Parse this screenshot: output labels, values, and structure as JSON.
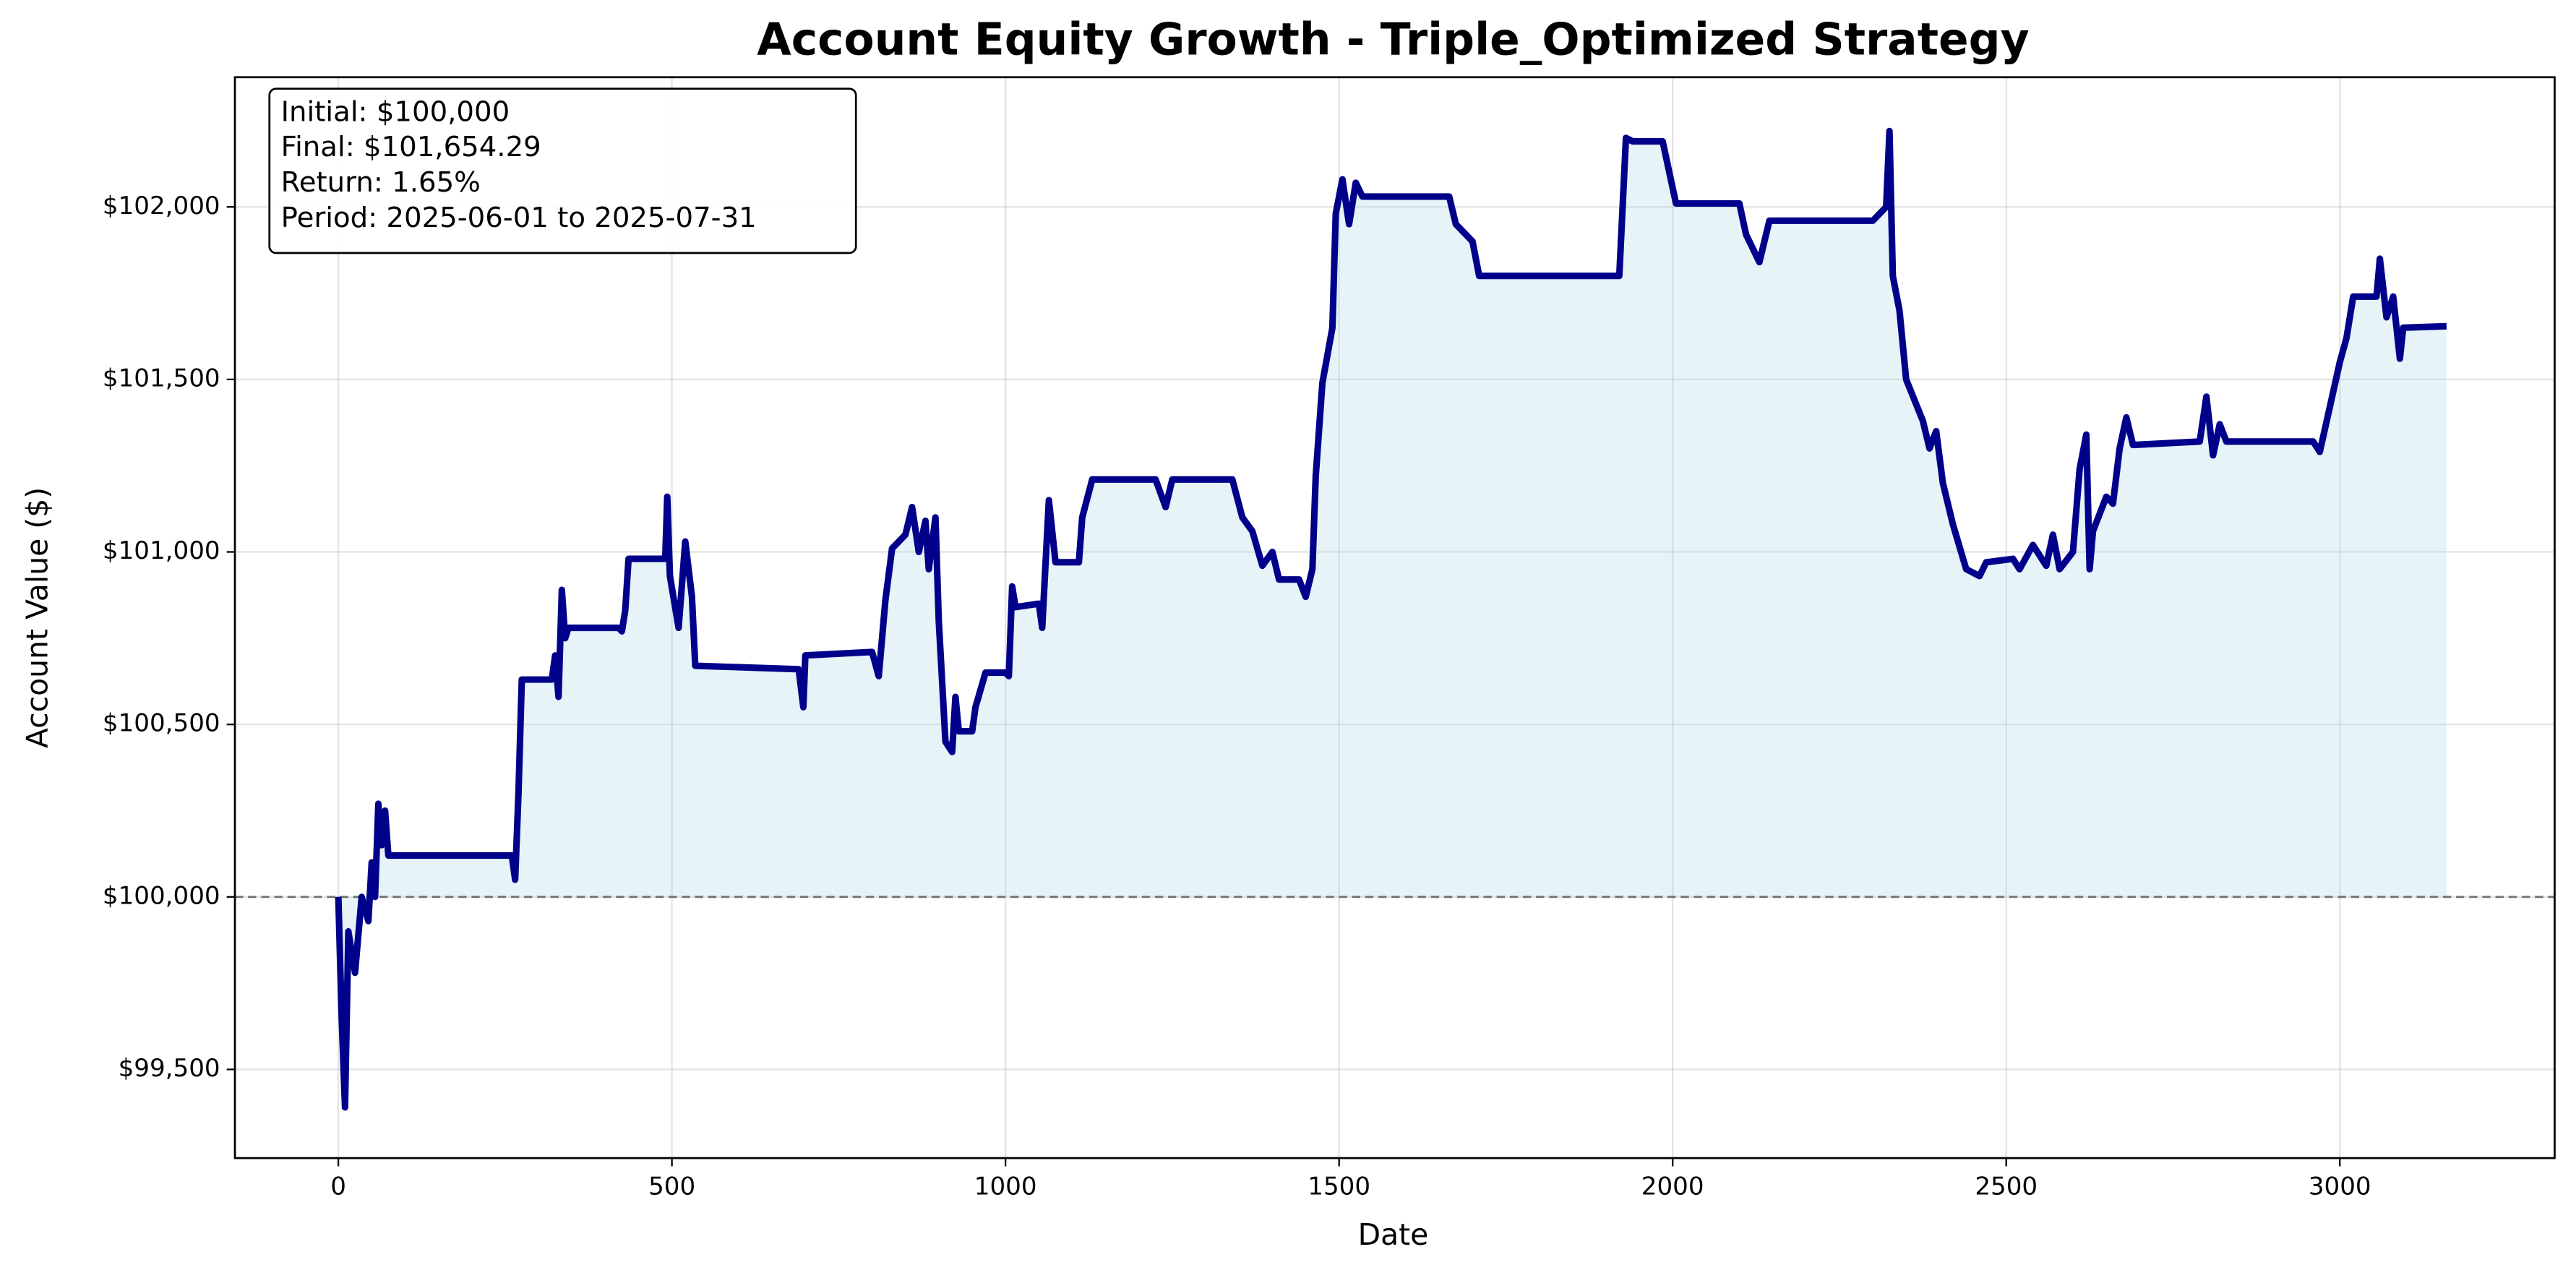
{
  "chart_data": {
    "type": "line",
    "title": "Account Equity Growth - Triple_Optimized Strategy",
    "x_label": "Date",
    "y_label": "Account Value ($)",
    "annotation": [
      "Initial: $100,000",
      "Final: $101,654.29",
      "Return: 1.65%",
      "Period: 2025-06-01 to 2025-07-31"
    ],
    "reference_line": 100000,
    "grid": true,
    "fill_color": "#add8e6",
    "xlim": [
      -155,
      3322
    ],
    "ylim": [
      99243,
      102376
    ],
    "xticks": [
      0,
      500,
      1000,
      1500,
      2000,
      2500,
      3000
    ],
    "yticks": [
      {
        "value": 99500,
        "label": "$99,500"
      },
      {
        "value": 100000,
        "label": "$100,000"
      },
      {
        "value": 100500,
        "label": "$100,500"
      },
      {
        "value": 101000,
        "label": "$101,000"
      },
      {
        "value": 101500,
        "label": "$101,500"
      },
      {
        "value": 102000,
        "label": "$102,000"
      }
    ],
    "x": [
      0,
      5,
      10,
      15,
      25,
      35,
      45,
      50,
      55,
      60,
      65,
      70,
      75,
      260,
      265,
      270,
      275,
      320,
      325,
      330,
      335,
      340,
      345,
      420,
      425,
      430,
      435,
      490,
      493,
      497,
      510,
      520,
      530,
      535,
      690,
      697,
      700,
      800,
      810,
      820,
      830,
      850,
      860,
      870,
      880,
      885,
      895,
      900,
      910,
      920,
      925,
      930,
      950,
      955,
      970,
      1000,
      1005,
      1010,
      1015,
      1050,
      1055,
      1065,
      1075,
      1110,
      1115,
      1130,
      1225,
      1240,
      1250,
      1340,
      1355,
      1370,
      1385,
      1400,
      1410,
      1440,
      1450,
      1460,
      1465,
      1475,
      1490,
      1495,
      1505,
      1515,
      1525,
      1535,
      1665,
      1675,
      1700,
      1710,
      1920,
      1930,
      1940,
      1985,
      1995,
      2005,
      2100,
      2110,
      2130,
      2145,
      2300,
      2320,
      2325,
      2330,
      2340,
      2350,
      2375,
      2385,
      2395,
      2405,
      2420,
      2440,
      2460,
      2470,
      2510,
      2520,
      2540,
      2560,
      2570,
      2580,
      2600,
      2610,
      2620,
      2625,
      2630,
      2650,
      2660,
      2670,
      2680,
      2690,
      2790,
      2800,
      2810,
      2820,
      2830,
      2960,
      2970,
      2985,
      3000,
      3010,
      3020,
      3055,
      3060,
      3070,
      3080,
      3090,
      3095,
      3160
    ],
    "series": [
      {
        "color": "#00008b",
        "values": [
          100000,
          99650,
          99390,
          99900,
          99780,
          100000,
          99930,
          100100,
          100000,
          100270,
          100150,
          100250,
          100120,
          100120,
          100050,
          100300,
          100630,
          100630,
          100700,
          100580,
          100890,
          100750,
          100780,
          100780,
          100770,
          100830,
          100980,
          100980,
          101160,
          100930,
          100780,
          101030,
          100870,
          100670,
          100660,
          100550,
          100700,
          100710,
          100640,
          100860,
          101010,
          101050,
          101130,
          101000,
          101090,
          100950,
          101100,
          100800,
          100450,
          100420,
          100580,
          100480,
          100480,
          100550,
          100650,
          100650,
          100640,
          100900,
          100840,
          100850,
          100780,
          101150,
          100970,
          100970,
          101100,
          101210,
          101210,
          101130,
          101210,
          101210,
          101100,
          101060,
          100960,
          101000,
          100920,
          100920,
          100870,
          100950,
          101220,
          101490,
          101650,
          101980,
          102080,
          101950,
          102070,
          102030,
          102030,
          101950,
          101900,
          101800,
          101800,
          102200,
          102190,
          102190,
          102100,
          102010,
          102010,
          101920,
          101840,
          101960,
          101960,
          102000,
          102220,
          101800,
          101700,
          101500,
          101380,
          101300,
          101350,
          101200,
          101080,
          100950,
          100930,
          100970,
          100980,
          100950,
          101020,
          100960,
          101050,
          100950,
          101000,
          101240,
          101340,
          100950,
          101060,
          101160,
          101140,
          101300,
          101390,
          101310,
          101320,
          101450,
          101280,
          101370,
          101320,
          101320,
          101290,
          101420,
          101550,
          101620,
          101740,
          101740,
          101850,
          101680,
          101740,
          101560,
          101650,
          101654.29
        ]
      }
    ]
  }
}
